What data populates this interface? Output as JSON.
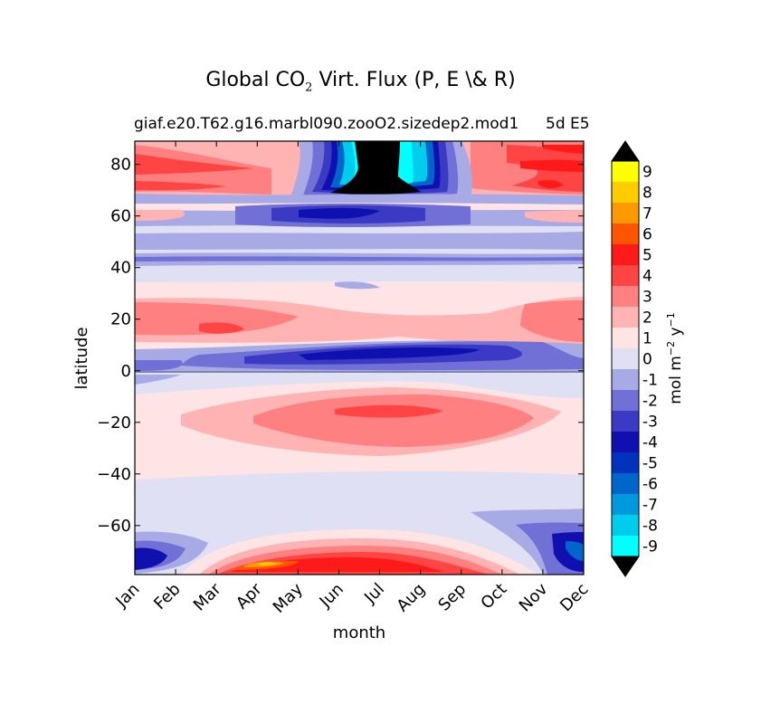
{
  "chart_data": {
    "type": "heatmap",
    "subtype": "filled-contour",
    "title_prefix": "Global CO",
    "title_subscript": "2",
    "title_suffix": " Virt. Flux (P, E \\& R)",
    "subtitle": "giaf.e20.T62.g16.marbl090.zooO2.sizedep2.mod1",
    "subtitle_right": "5d E5",
    "xlabel": "month",
    "ylabel": "latitude",
    "x_categories": [
      "Jan",
      "Feb",
      "Mar",
      "Apr",
      "May",
      "Jun",
      "Jul",
      "Aug",
      "Sep",
      "Oct",
      "Nov",
      "Dec"
    ],
    "y_ticks": [
      "80",
      "60",
      "40",
      "20",
      "0",
      "−20",
      "−40",
      "−60"
    ],
    "y_tick_values": [
      80,
      60,
      40,
      20,
      0,
      -20,
      -40,
      -60
    ],
    "ylim": [
      -79,
      89
    ],
    "colorbar": {
      "label": "mol m",
      "label_sup1": "−2",
      "label_mid": " y",
      "label_sup2": "−1",
      "levels": [
        "9",
        "8",
        "7",
        "6",
        "5",
        "4",
        "3",
        "2",
        "1",
        "0",
        "-1",
        "-2",
        "-3",
        "-4",
        "-5",
        "-6",
        "-7",
        "-8",
        "-9"
      ],
      "colors": [
        "#ffff00",
        "#ffcc00",
        "#ff9900",
        "#ff5500",
        "#ff1a1a",
        "#ff4444",
        "#ff8080",
        "#ffb3b3",
        "#ffe4e6",
        "#dfe0f3",
        "#a8aae6",
        "#7070d6",
        "#3a3ac4",
        "#1010b0",
        "#0033bb",
        "#0066cc",
        "#0099dd",
        "#00ccee",
        "#00ffff"
      ],
      "extend_max_color": "#000000",
      "extend_min_color": "#000000"
    },
    "grid": false,
    "approx_bands_by_latitude": [
      {
        "lat_range": [
          68,
          89
        ],
        "pattern": "red 2-4 in Jan-Feb and Oct-Dec; blue to black (below -9) Jun-Aug"
      },
      {
        "lat_range": [
          55,
          68
        ],
        "pattern": "blue -1 to -4, strongest Jun-Jul"
      },
      {
        "lat_range": [
          45,
          55
        ],
        "pattern": "-1 to -2"
      },
      {
        "lat_range": [
          12,
          35
        ],
        "pattern": "pink to red 1-3, peak near Apr-May and Nov"
      },
      {
        "lat_range": [
          0,
          12
        ],
        "pattern": "blue -1 to -4, strongest Jun-Sep"
      },
      {
        "lat_range": [
          -30,
          -5
        ],
        "pattern": "pink 1-3 with red core near Jun-Aug at -15"
      },
      {
        "lat_range": [
          -60,
          -35
        ],
        "pattern": "0 to -1"
      },
      {
        "lat_range": [
          -79,
          -62
        ],
        "pattern": "red up to 6+ Mar-Sep near -75; blue -2 to -6 in Jan and Dec"
      }
    ]
  }
}
